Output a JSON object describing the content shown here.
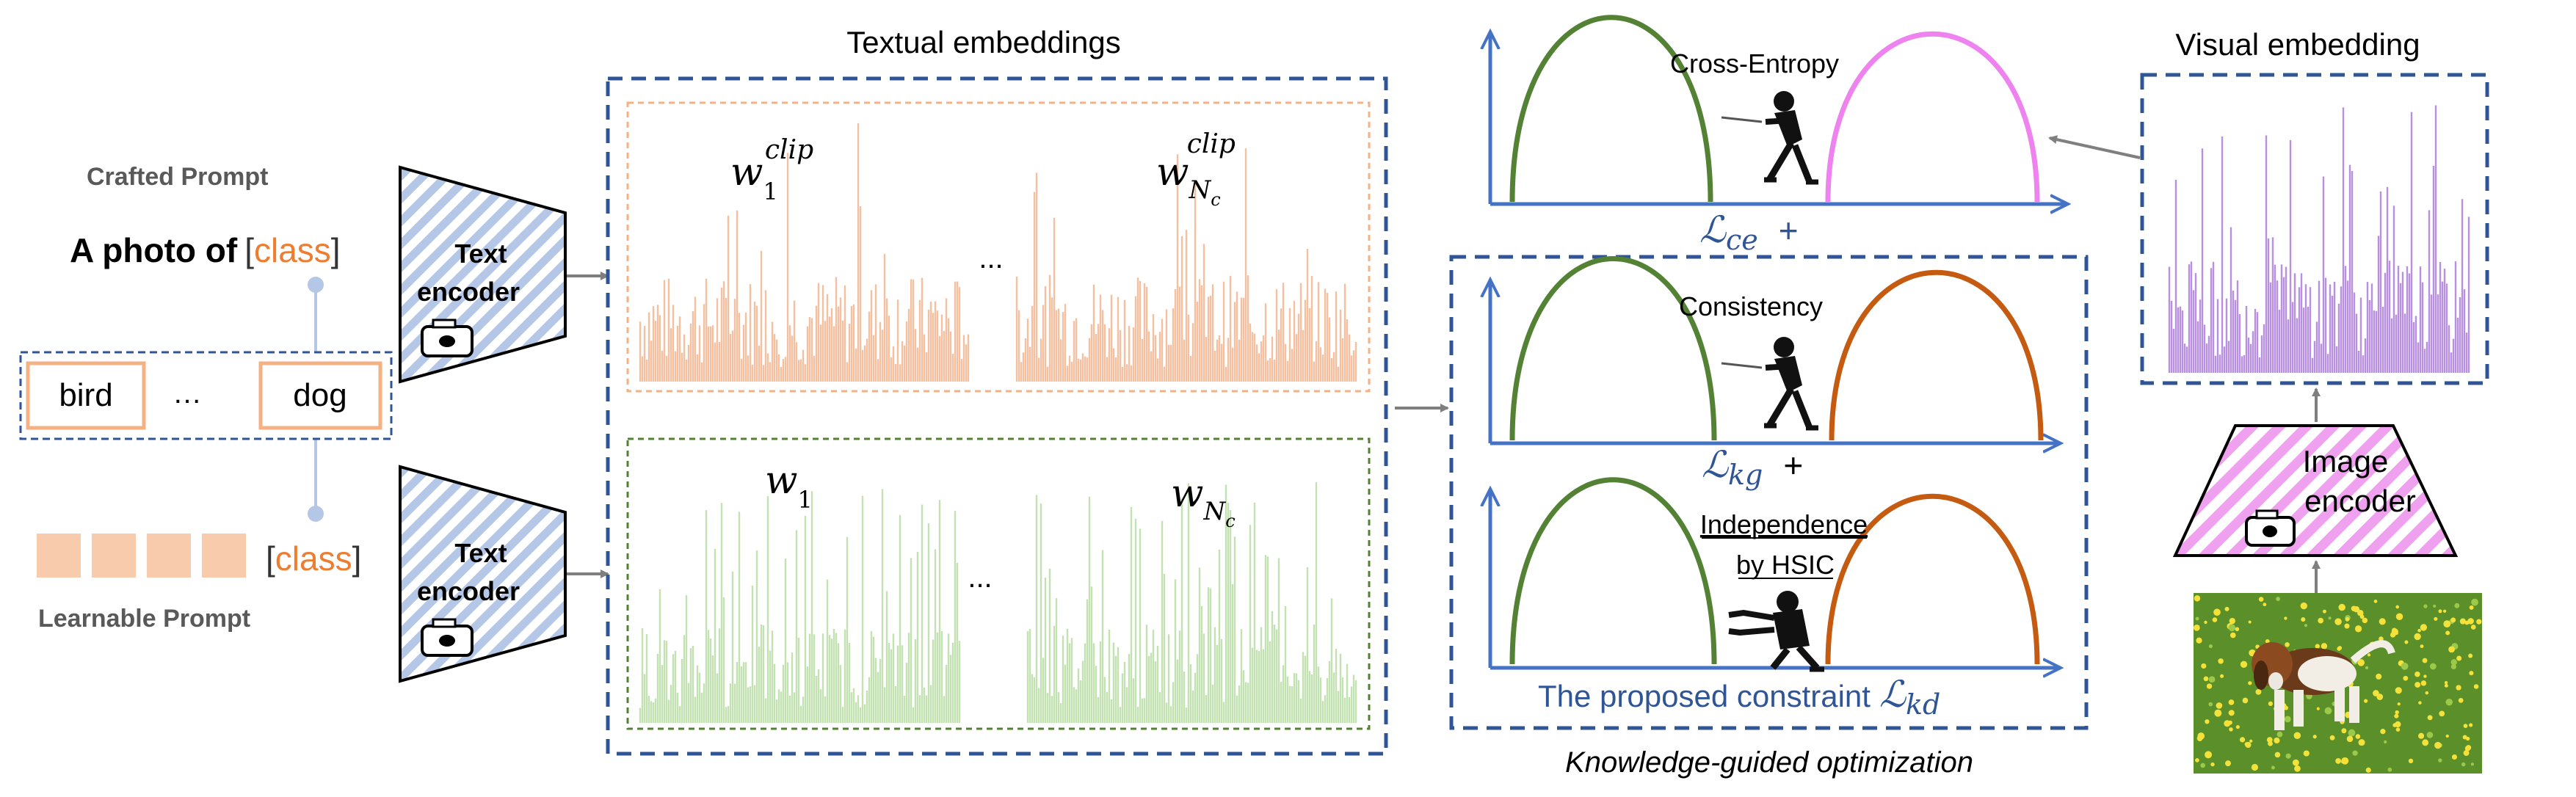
{
  "left": {
    "crafted_prompt_label": "Crafted Prompt",
    "a_photo_of": "A photo of",
    "bracket_open": "[",
    "class_word": "class",
    "bracket_close": "]",
    "class_bird": "bird",
    "class_ellipsis": "…",
    "class_dog": "dog",
    "learnable_class_open": "[",
    "learnable_class_word": "class",
    "learnable_class_close": "]",
    "learnable_prompt_label": "Learnable Prompt"
  },
  "encoders": {
    "text_encoder_line1": "Text",
    "text_encoder_line2": "encoder",
    "image_encoder_line1": "Image",
    "image_encoder_line2": "encoder"
  },
  "textual": {
    "title": "Textual embeddings",
    "w1_clip_base": "w",
    "w1_clip_sub": "1",
    "w1_clip_sup": "clip",
    "wnc_clip_base": "w",
    "wnc_clip_sub": "N",
    "wnc_clip_subsub": "c",
    "wnc_clip_sup": "clip",
    "ellipsis_top": "...",
    "w1_base": "w",
    "w1_sub": "1",
    "wnc_base": "w",
    "wnc_sub": "N",
    "wnc_subsub": "c",
    "ellipsis_bottom": "..."
  },
  "optimization": {
    "cross_entropy": "Cross-Entropy",
    "l_ce_symbol": "ℒ",
    "l_ce_sub": "ce",
    "plus_1": "+",
    "consistency": "Consistency",
    "l_kg_symbol": "ℒ",
    "l_kg_sub": "kg",
    "plus_2": "+",
    "independence": "Independence",
    "by_hsic": "by HSIC",
    "proposed_text": "The proposed  constraint",
    "l_kd_symbol": "ℒ",
    "l_kd_sub": "kd",
    "caption": "Knowledge-guided optimization"
  },
  "visual": {
    "title": "Visual embedding"
  },
  "colors": {
    "dash_blue": "#2F5597",
    "axis_blue": "#4472C4",
    "orange_text": "#ED7D31",
    "orange_bars": "#F4C0A0",
    "green_bars": "#C3E2B2",
    "purple_bars": "#B98FE0",
    "green_arc": "#548235",
    "orange_arc": "#C55A11",
    "magenta_arc": "#EE82EE",
    "peach_box": "#F8CBAD",
    "hatch": "#8FAADC",
    "image_hatch": "#E98AE8"
  },
  "icons": [
    "camera-icon",
    "tug-of-war-figure-icon",
    "pushing-figure-icon",
    "dog-photo"
  ]
}
